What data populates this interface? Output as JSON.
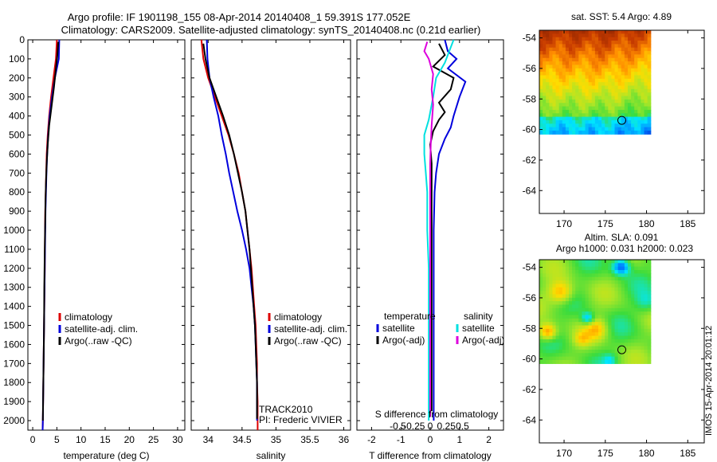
{
  "title_line1": "Argo profile: IF 1901198_155 08-Apr-2014 20140408_1 59.391S 177.052E",
  "title_line2": "Climatology: CARS2009. Satellite-adjusted climatology: synTS_20140408.nc (0.21d earlier)",
  "side_stamp": "IMOS 15-Apr-2014 20:01:12",
  "chart_data": [
    {
      "type": "line",
      "id": "temperature",
      "xlabel": "temperature (deg C)",
      "xlim": [
        -1,
        31.5
      ],
      "xticks": [
        0,
        5,
        10,
        15,
        20,
        25,
        30
      ],
      "ylim": [
        2050,
        0
      ],
      "yticks": [
        0,
        100,
        200,
        300,
        400,
        500,
        600,
        700,
        800,
        900,
        1000,
        1100,
        1200,
        1300,
        1400,
        1500,
        1600,
        1700,
        1800,
        1900,
        2000
      ],
      "legend": [
        "climatology",
        "satellite-adj. clim.",
        "Argo(..raw -QC)"
      ],
      "series": [
        {
          "name": "climatology",
          "color": "#dd0000",
          "points": [
            [
              5.0,
              0
            ],
            [
              4.8,
              100
            ],
            [
              4.3,
              200
            ],
            [
              3.8,
              300
            ],
            [
              3.4,
              400
            ],
            [
              3.1,
              500
            ],
            [
              2.9,
              600
            ],
            [
              2.8,
              700
            ],
            [
              2.7,
              800
            ],
            [
              2.6,
              900
            ],
            [
              2.55,
              1000
            ],
            [
              2.5,
              1200
            ],
            [
              2.4,
              1400
            ],
            [
              2.3,
              1600
            ],
            [
              2.2,
              1800
            ],
            [
              2.1,
              2000
            ],
            [
              2.05,
              2050
            ]
          ]
        },
        {
          "name": "satellite-adj. clim.",
          "color": "#0000dd",
          "points": [
            [
              5.5,
              0
            ],
            [
              5.4,
              100
            ],
            [
              4.6,
              200
            ],
            [
              4.0,
              300
            ],
            [
              3.5,
              400
            ],
            [
              3.2,
              500
            ],
            [
              3.0,
              600
            ],
            [
              2.85,
              700
            ],
            [
              2.75,
              800
            ],
            [
              2.65,
              900
            ],
            [
              2.6,
              1000
            ],
            [
              2.5,
              1200
            ],
            [
              2.4,
              1400
            ],
            [
              2.3,
              1600
            ],
            [
              2.2,
              1800
            ],
            [
              2.1,
              2000
            ],
            [
              2.05,
              2050
            ]
          ]
        },
        {
          "name": "Argo(..raw -QC)",
          "color": "#000000",
          "points": [
            [
              5.3,
              10
            ],
            [
              5.1,
              80
            ],
            [
              4.8,
              150
            ],
            [
              4.4,
              250
            ],
            [
              3.9,
              350
            ],
            [
              3.4,
              450
            ],
            [
              3.1,
              550
            ],
            [
              2.9,
              650
            ],
            [
              2.75,
              750
            ],
            [
              2.65,
              850
            ],
            [
              2.6,
              950
            ],
            [
              2.5,
              1100
            ],
            [
              2.4,
              1300
            ],
            [
              2.35,
              1500
            ],
            [
              2.25,
              1700
            ],
            [
              2.15,
              1900
            ],
            [
              2.1,
              2000
            ]
          ]
        }
      ]
    },
    {
      "type": "line",
      "id": "salinity",
      "xlabel": "salinity",
      "xlim": [
        33.75,
        36.1
      ],
      "xticks": [
        34,
        34.5,
        35,
        35.5,
        36
      ],
      "ylim": [
        2050,
        0
      ],
      "legend": [
        "climatology",
        "satellite-adj. clim.",
        "Argo(..raw -QC)"
      ],
      "annotations": [
        "TRACK2010",
        "PI: Frederic VIVIER"
      ],
      "series": [
        {
          "name": "climatology",
          "color": "#dd0000",
          "points": [
            [
              33.9,
              0
            ],
            [
              33.93,
              100
            ],
            [
              34.0,
              200
            ],
            [
              34.1,
              300
            ],
            [
              34.2,
              400
            ],
            [
              34.3,
              500
            ],
            [
              34.38,
              600
            ],
            [
              34.45,
              700
            ],
            [
              34.5,
              800
            ],
            [
              34.55,
              900
            ],
            [
              34.58,
              1000
            ],
            [
              34.61,
              1100
            ],
            [
              34.64,
              1200
            ],
            [
              34.66,
              1300
            ],
            [
              34.68,
              1400
            ],
            [
              34.7,
              1500
            ],
            [
              34.71,
              1600
            ],
            [
              34.72,
              1700
            ],
            [
              34.72,
              1800
            ],
            [
              34.73,
              1900
            ],
            [
              34.73,
              2050
            ]
          ]
        },
        {
          "name": "satellite-adj. clim.",
          "color": "#0000dd",
          "points": [
            [
              33.98,
              0
            ],
            [
              33.99,
              100
            ],
            [
              34.02,
              200
            ],
            [
              34.08,
              300
            ],
            [
              34.15,
              400
            ],
            [
              34.2,
              500
            ],
            [
              34.26,
              600
            ],
            [
              34.31,
              700
            ],
            [
              34.37,
              800
            ],
            [
              34.43,
              900
            ],
            [
              34.5,
              1000
            ],
            [
              34.56,
              1100
            ],
            [
              34.61,
              1200
            ],
            [
              34.64,
              1300
            ],
            [
              34.67,
              1400
            ],
            [
              34.69,
              1500
            ],
            [
              34.7,
              1600
            ],
            [
              34.71,
              1700
            ],
            [
              34.72,
              1800
            ],
            [
              34.72,
              1900
            ],
            [
              34.72,
              2000
            ]
          ]
        },
        {
          "name": "Argo(..raw -QC)",
          "color": "#000000",
          "points": [
            [
              33.93,
              20
            ],
            [
              33.96,
              100
            ],
            [
              34.02,
              200
            ],
            [
              34.12,
              300
            ],
            [
              34.22,
              400
            ],
            [
              34.31,
              500
            ],
            [
              34.38,
              600
            ],
            [
              34.44,
              700
            ],
            [
              34.5,
              800
            ],
            [
              34.55,
              900
            ],
            [
              34.58,
              1000
            ],
            [
              34.61,
              1100
            ],
            [
              34.63,
              1200
            ],
            [
              34.65,
              1300
            ],
            [
              34.67,
              1400
            ],
            [
              34.69,
              1500
            ],
            [
              34.7,
              1600
            ],
            [
              34.71,
              1700
            ],
            [
              34.72,
              1800
            ],
            [
              34.72,
              1900
            ],
            [
              34.72,
              1990
            ]
          ]
        }
      ]
    },
    {
      "type": "line",
      "id": "difference",
      "xlabel": "T difference from climatology",
      "toplabel": "S difference from climatology",
      "xlim": [
        -2.5,
        2.5
      ],
      "xticks": [
        -2,
        -1,
        0,
        1,
        2
      ],
      "sticks": [
        -0.5,
        -0.25,
        0,
        0.25,
        0.5
      ],
      "ylim": [
        2050,
        0
      ],
      "legend_headers": [
        "temperature",
        "salinity"
      ],
      "legend_t": [
        "satellite",
        "Argo(-adj)"
      ],
      "legend_s": [
        "satellite",
        "Argo(-adj)"
      ],
      "series": [
        {
          "name": "T satellite",
          "color": "#0000dd",
          "points": [
            [
              0.5,
              0
            ],
            [
              0.6,
              60
            ],
            [
              0.9,
              100
            ],
            [
              0.6,
              150
            ],
            [
              1.2,
              220
            ],
            [
              1.0,
              300
            ],
            [
              0.8,
              400
            ],
            [
              0.7,
              460
            ],
            [
              0.5,
              520
            ],
            [
              0.3,
              600
            ],
            [
              0.2,
              700
            ],
            [
              0.15,
              800
            ],
            [
              0.12,
              1000
            ],
            [
              0.12,
              1200
            ],
            [
              0.12,
              1500
            ],
            [
              0.12,
              1800
            ],
            [
              0.12,
              2000
            ]
          ]
        },
        {
          "name": "T Argo(-adj)",
          "color": "#000000",
          "points": [
            [
              0.3,
              20
            ],
            [
              0.5,
              80
            ],
            [
              0.1,
              140
            ],
            [
              0.8,
              200
            ],
            [
              0.7,
              260
            ],
            [
              0.3,
              330
            ],
            [
              0.5,
              380
            ],
            [
              0.3,
              420
            ],
            [
              0.1,
              480
            ],
            [
              0.0,
              550
            ],
            [
              0.05,
              650
            ],
            [
              0.05,
              800
            ],
            [
              0.05,
              1000
            ],
            [
              0.05,
              1200
            ],
            [
              0.05,
              1500
            ],
            [
              0.05,
              1800
            ],
            [
              0.05,
              1950
            ]
          ]
        },
        {
          "name": "S satellite",
          "color": "#00e0e0",
          "points": [
            [
              0.8,
              0
            ],
            [
              0.65,
              60
            ],
            [
              0.5,
              120
            ],
            [
              0.2,
              200
            ],
            [
              0.1,
              300
            ],
            [
              -0.05,
              420
            ],
            [
              -0.2,
              500
            ],
            [
              -0.2,
              600
            ],
            [
              -0.15,
              700
            ],
            [
              -0.1,
              800
            ],
            [
              -0.1,
              1000
            ],
            [
              -0.05,
              1200
            ],
            [
              -0.05,
              1500
            ],
            [
              -0.05,
              1800
            ],
            [
              -0.05,
              2000
            ]
          ]
        },
        {
          "name": "S Argo(-adj)",
          "color": "#dd00dd",
          "points": [
            [
              -0.1,
              10
            ],
            [
              -0.2,
              60
            ],
            [
              -0.05,
              100
            ],
            [
              0.1,
              180
            ],
            [
              0.05,
              260
            ],
            [
              0.1,
              340
            ],
            [
              0.05,
              450
            ],
            [
              0.02,
              550
            ],
            [
              0.0,
              650
            ],
            [
              0.0,
              800
            ],
            [
              0.0,
              1000
            ],
            [
              0.0,
              1200
            ],
            [
              0.0,
              1500
            ],
            [
              0.0,
              1800
            ],
            [
              0.0,
              1980
            ]
          ]
        }
      ]
    },
    {
      "type": "heatmap",
      "id": "sst-map",
      "title": "sat. SST: 5.4 Argo: 4.89",
      "xlim": [
        167,
        187
      ],
      "ylim": [
        -65.5,
        -53.5
      ],
      "xticks": [
        170,
        175,
        180,
        185
      ],
      "yticks": [
        -54,
        -56,
        -58,
        -60,
        -62,
        -64
      ],
      "data_extent": {
        "lon": [
          167,
          180.5
        ],
        "lat": [
          -60.3,
          -53.5
        ]
      },
      "marker": [
        177,
        -59.4
      ]
    },
    {
      "type": "heatmap",
      "id": "sla-map",
      "title": "Altim. SLA: 0.091",
      "title2": "Argo h1000: 0.031 h2000: 0.023",
      "xlim": [
        167,
        187
      ],
      "ylim": [
        -65.5,
        -53.5
      ],
      "xticks": [
        170,
        175,
        180,
        185
      ],
      "yticks": [
        -54,
        -56,
        -58,
        -60,
        -62,
        -64
      ],
      "data_extent": {
        "lon": [
          167,
          180.5
        ],
        "lat": [
          -60.3,
          -53.5
        ]
      },
      "marker": [
        177,
        -59.4
      ]
    }
  ]
}
